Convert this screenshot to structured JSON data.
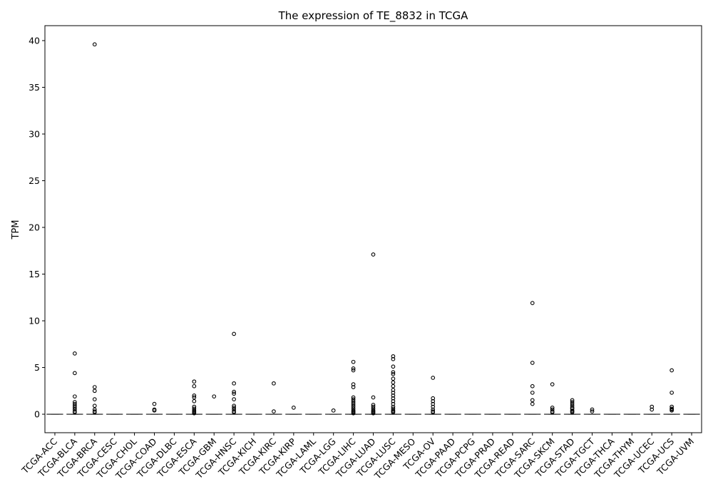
{
  "chart_data": {
    "type": "box",
    "title": "The expression of TE_8832 in TCGA",
    "xlabel": "",
    "ylabel": "TPM",
    "ylim": [
      -1.98,
      41.6
    ],
    "yticks": [
      0,
      5,
      10,
      15,
      20,
      25,
      30,
      35,
      40
    ],
    "grid": false,
    "legend": "none",
    "categories": [
      "TCGA-ACC",
      "TCGA-BLCA",
      "TCGA-BRCA",
      "TCGA-CESC",
      "TCGA-CHOL",
      "TCGA-COAD",
      "TCGA-DLBC",
      "TCGA-ESCA",
      "TCGA-GBM",
      "TCGA-HNSC",
      "TCGA-KICH",
      "TCGA-KIRC",
      "TCGA-KIRP",
      "TCGA-LAML",
      "TCGA-LGG",
      "TCGA-LIHC",
      "TCGA-LUAD",
      "TCGA-LUSC",
      "TCGA-MESO",
      "TCGA-OV",
      "TCGA-PAAD",
      "TCGA-PCPG",
      "TCGA-PRAD",
      "TCGA-READ",
      "TCGA-SARC",
      "TCGA-SKCM",
      "TCGA-STAD",
      "TCGA-TGCT",
      "TCGA-THCA",
      "TCGA-THYM",
      "TCGA-UCEC",
      "TCGA-UCS",
      "TCGA-UVM"
    ],
    "box_stats": {
      "q1": 0,
      "median": 0,
      "q3": 0,
      "whisker_low": 0,
      "whisker_high": 0
    },
    "outliers": [
      [],
      [
        6.5,
        4.4,
        1.9,
        1.3,
        1.1,
        0.9,
        0.7,
        0.5,
        0.3,
        0.2
      ],
      [
        39.6,
        2.9,
        2.5,
        1.6,
        0.9,
        0.5,
        0.3,
        0.2
      ],
      [],
      [],
      [
        1.1,
        0.5,
        0.4
      ],
      [],
      [
        3.5,
        3.0,
        2.0,
        1.8,
        1.4,
        0.8,
        0.6,
        0.4,
        0.3,
        0.2,
        0.1
      ],
      [
        1.9
      ],
      [
        8.6,
        3.3,
        2.4,
        2.2,
        1.6,
        0.9,
        0.7,
        0.5,
        0.3,
        0.2
      ],
      [],
      [
        3.3,
        0.3
      ],
      [
        0.7
      ],
      [],
      [
        0.4
      ],
      [
        5.6,
        4.9,
        4.7,
        3.2,
        2.9,
        1.8,
        1.6,
        1.4,
        1.2,
        1.0,
        0.8,
        0.6,
        0.4,
        0.3,
        0.2,
        0.1
      ],
      [
        17.1,
        1.8,
        1.0,
        0.8,
        0.6,
        0.4,
        0.3,
        0.2,
        0.1
      ],
      [
        6.2,
        5.9,
        5.1,
        4.5,
        4.3,
        3.8,
        3.4,
        3.0,
        2.6,
        2.3,
        2.0,
        1.7,
        1.4,
        1.1,
        0.8,
        0.6,
        0.4,
        0.3,
        0.2
      ],
      [],
      [
        3.9,
        1.7,
        1.4,
        1.1,
        0.8,
        0.5,
        0.3,
        0.2
      ],
      [],
      [],
      [],
      [],
      [
        11.9,
        5.5,
        3.0,
        2.3,
        1.5,
        1.1
      ],
      [
        3.2,
        0.7,
        0.5,
        0.3,
        0.2
      ],
      [
        1.5,
        1.3,
        1.1,
        0.9,
        0.7,
        0.6,
        0.4,
        0.3,
        0.2
      ],
      [
        0.5,
        0.3
      ],
      [],
      [],
      [
        0.8,
        0.5
      ],
      [
        4.7,
        2.3,
        0.8,
        0.6,
        0.5,
        0.4
      ],
      []
    ]
  }
}
